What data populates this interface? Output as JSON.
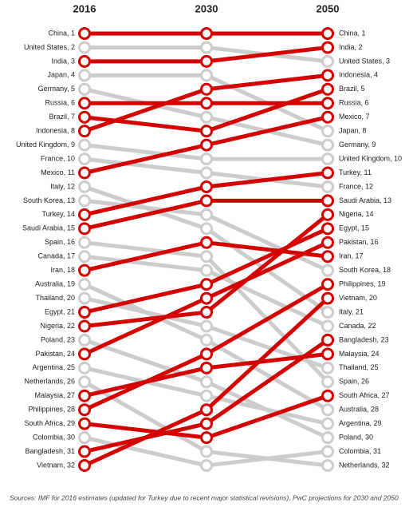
{
  "chart_data": {
    "type": "slope",
    "columns": [
      "2016",
      "2030",
      "2050"
    ],
    "ylim": [
      1,
      32
    ],
    "left_labels": [
      "China, 1",
      "United States, 2",
      "India, 3",
      "Japan, 4",
      "Germany, 5",
      "Russia, 6",
      "Brazil, 7",
      "Indonesia, 8",
      "United Kingdom, 9",
      "France, 10",
      "Mexico, 11",
      "Italy, 12",
      "South Korea, 13",
      "Turkey, 14",
      "Saudi Arabia, 15",
      "Spain, 16",
      "Canada, 17",
      "Iran, 18",
      "Australia, 19",
      "Thailand, 20",
      "Egypt, 21",
      "Nigeria, 22",
      "Poland, 23",
      "Pakistan, 24",
      "Argentina, 25",
      "Netherlands, 26",
      "Malaysia, 27",
      "Philippines, 28",
      "South Africa, 29",
      "Colombia, 30",
      "Bangladesh, 31",
      "Vietnam, 32"
    ],
    "right_labels": [
      "China, 1",
      "India, 2",
      "United States, 3",
      "Indonesia, 4",
      "Brazil, 5",
      "Russia, 6",
      "Mexico, 7",
      "Japan, 8",
      "Germany, 9",
      "United Kingdom, 10",
      "Turkey, 11",
      "France, 12",
      "Saudi Arabia, 13",
      "Nigeria, 14",
      "Egypt, 15",
      "Pakistan, 16",
      "Iran, 17",
      "South Korea, 18",
      "Philippines, 19",
      "Vietnam, 20",
      "Italy, 21",
      "Canada, 22",
      "Bangladesh, 23",
      "Malaysia, 24",
      "Thailand, 25",
      "Spain, 26",
      "South Africa, 27",
      "Australia, 28",
      "Argentina, 29",
      "Poland, 30",
      "Colombia, 31",
      "Netherlands, 32"
    ],
    "series": [
      {
        "color": "#d40000",
        "values": [
          1,
          1,
          1
        ]
      },
      {
        "color": "#cccccc",
        "values": [
          2,
          2,
          3
        ]
      },
      {
        "color": "#d40000",
        "values": [
          3,
          3,
          2
        ]
      },
      {
        "color": "#cccccc",
        "values": [
          4,
          4,
          8
        ]
      },
      {
        "color": "#cccccc",
        "values": [
          5,
          7,
          9
        ]
      },
      {
        "color": "#d40000",
        "values": [
          6,
          6,
          6
        ]
      },
      {
        "color": "#d40000",
        "values": [
          7,
          8,
          5
        ]
      },
      {
        "color": "#d40000",
        "values": [
          8,
          5,
          4
        ]
      },
      {
        "color": "#cccccc",
        "values": [
          9,
          10,
          10
        ]
      },
      {
        "color": "#cccccc",
        "values": [
          10,
          11,
          12
        ]
      },
      {
        "color": "#d40000",
        "values": [
          11,
          9,
          7
        ]
      },
      {
        "color": "#cccccc",
        "values": [
          12,
          15,
          21
        ]
      },
      {
        "color": "#cccccc",
        "values": [
          13,
          14,
          18
        ]
      },
      {
        "color": "#d40000",
        "values": [
          14,
          12,
          11
        ]
      },
      {
        "color": "#d40000",
        "values": [
          15,
          13,
          13
        ]
      },
      {
        "color": "#cccccc",
        "values": [
          16,
          17,
          26
        ]
      },
      {
        "color": "#cccccc",
        "values": [
          17,
          18,
          22
        ]
      },
      {
        "color": "#d40000",
        "values": [
          18,
          16,
          17
        ]
      },
      {
        "color": "#cccccc",
        "values": [
          19,
          23,
          28
        ]
      },
      {
        "color": "#cccccc",
        "values": [
          20,
          22,
          25
        ]
      },
      {
        "color": "#d40000",
        "values": [
          21,
          19,
          15
        ]
      },
      {
        "color": "#d40000",
        "values": [
          22,
          21,
          14
        ]
      },
      {
        "color": "#cccccc",
        "values": [
          23,
          26,
          30
        ]
      },
      {
        "color": "#d40000",
        "values": [
          24,
          20,
          16
        ]
      },
      {
        "color": "#cccccc",
        "values": [
          25,
          27,
          29
        ]
      },
      {
        "color": "#cccccc",
        "values": [
          26,
          31,
          32
        ]
      },
      {
        "color": "#d40000",
        "values": [
          27,
          25,
          24
        ]
      },
      {
        "color": "#d40000",
        "values": [
          28,
          24,
          19
        ]
      },
      {
        "color": "#d40000",
        "values": [
          29,
          30,
          27
        ]
      },
      {
        "color": "#cccccc",
        "values": [
          30,
          32,
          31
        ]
      },
      {
        "color": "#d40000",
        "values": [
          31,
          29,
          23
        ]
      },
      {
        "color": "#d40000",
        "values": [
          32,
          28,
          20
        ]
      }
    ],
    "source": "Sources: IMF for 2016 estimates (updated for Turkey due to recent major statistical revisions), PwC projections for 2030 and 2050"
  }
}
